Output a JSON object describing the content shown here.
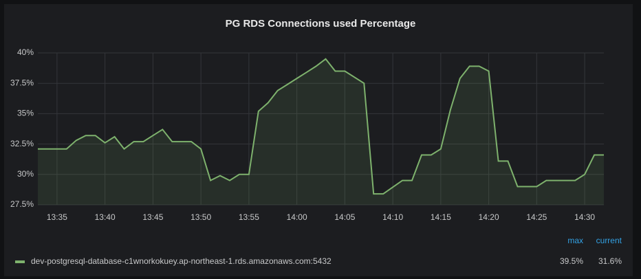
{
  "chart_data": {
    "type": "line",
    "title": "PG RDS Connections used Percentage",
    "x": [
      "13:33",
      "13:36",
      "13:37",
      "13:38",
      "13:39",
      "13:40",
      "13:41",
      "13:42",
      "13:43",
      "13:44",
      "13:45",
      "13:46",
      "13:47",
      "13:49",
      "13:50",
      "13:51",
      "13:52",
      "13:53",
      "13:54",
      "13:55",
      "13:56",
      "13:57",
      "13:58",
      "13:59",
      "14:00",
      "14:01",
      "14:02",
      "14:03",
      "14:04",
      "14:05",
      "14:07",
      "14:08",
      "14:09",
      "14:11",
      "14:12",
      "14:13",
      "14:14",
      "14:15",
      "14:16",
      "14:17",
      "14:18",
      "14:19",
      "14:20",
      "14:21",
      "14:22",
      "14:23",
      "14:25",
      "14:26",
      "14:29",
      "14:30",
      "14:31",
      "14:32"
    ],
    "series": [
      {
        "name": "dev-postgresql-database-c1wnorkokuey.ap-northeast-1.rds.amazonaws.com:5432",
        "color": "#7eb26d",
        "values": [
          32.1,
          32.1,
          32.8,
          33.2,
          33.2,
          32.6,
          33.1,
          32.1,
          32.7,
          32.7,
          33.2,
          33.7,
          32.7,
          32.7,
          32.1,
          29.5,
          29.9,
          29.5,
          30.0,
          30.0,
          35.2,
          35.9,
          36.9,
          37.4,
          37.9,
          38.4,
          38.9,
          39.5,
          38.5,
          38.5,
          37.5,
          28.4,
          28.4,
          29.5,
          29.5,
          31.6,
          31.6,
          32.1,
          35.3,
          37.9,
          38.9,
          38.9,
          38.5,
          31.1,
          31.1,
          29.0,
          29.0,
          29.5,
          29.5,
          30.0,
          31.6,
          31.6
        ]
      }
    ],
    "xlim": [
      "13:33",
      "14:32"
    ],
    "xticks": [
      "13:35",
      "13:40",
      "13:45",
      "13:50",
      "13:55",
      "14:00",
      "14:05",
      "14:10",
      "14:15",
      "14:20",
      "14:25",
      "14:30"
    ],
    "ylim": [
      27.5,
      40
    ],
    "yticks": [
      {
        "value": 27.5,
        "label": "27.5%"
      },
      {
        "value": 30,
        "label": "30%"
      },
      {
        "value": 32.5,
        "label": "32.5%"
      },
      {
        "value": 35,
        "label": "35%"
      },
      {
        "value": 37.5,
        "label": "37.5%"
      },
      {
        "value": 40,
        "label": "40%"
      }
    ],
    "grid": true,
    "legend_columns": [
      "max",
      "current"
    ],
    "legend_stats": [
      {
        "value": 39.5,
        "label": "39.5%"
      },
      {
        "value": 31.6,
        "label": "31.6%"
      }
    ]
  }
}
